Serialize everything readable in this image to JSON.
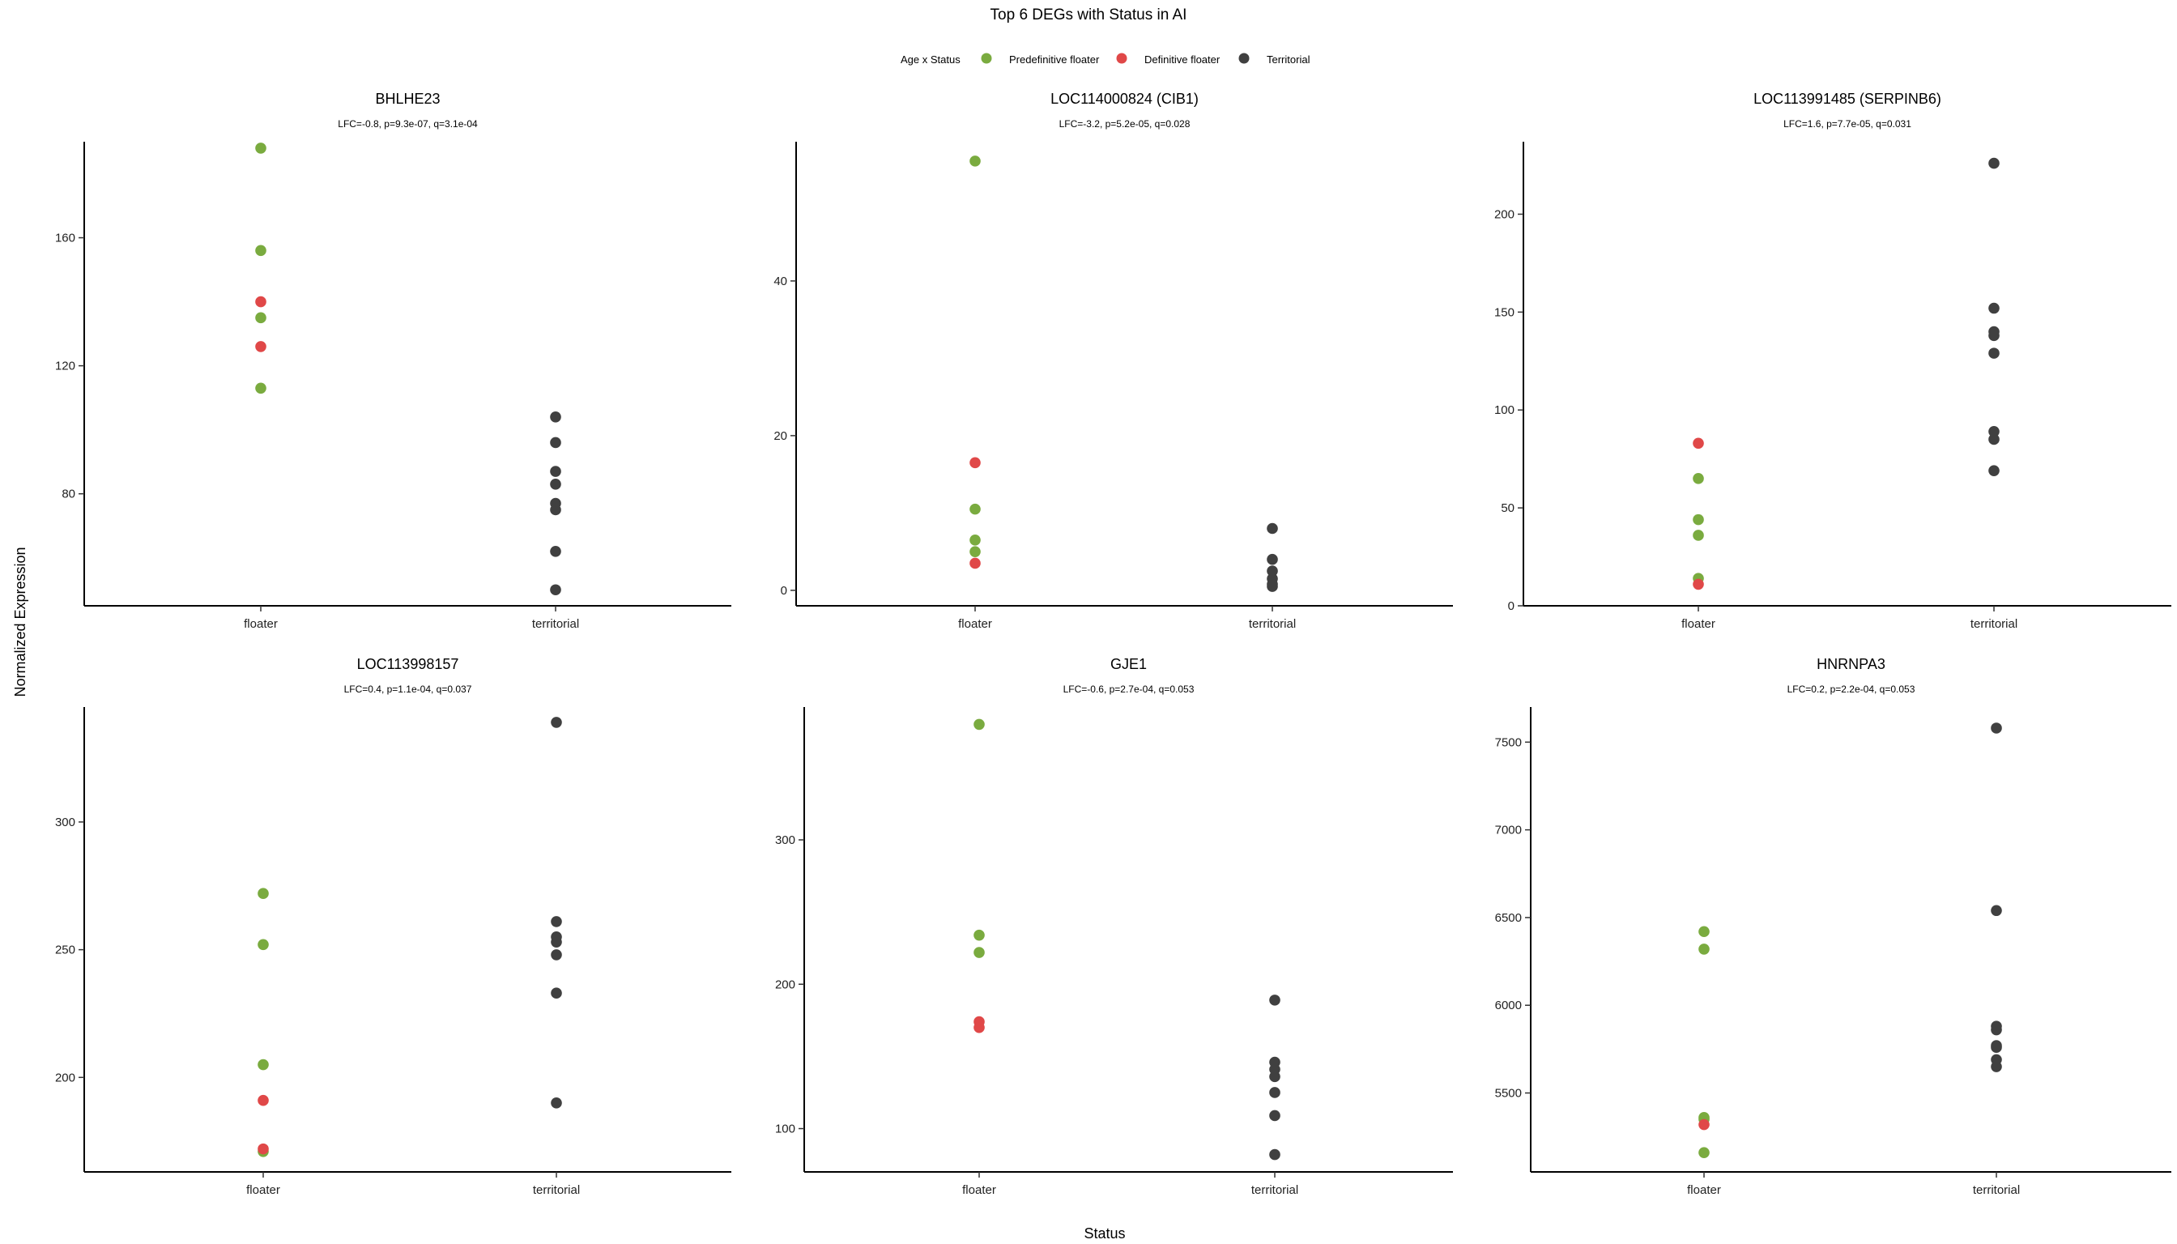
{
  "figure": {
    "title": "Top 6 DEGs with Status in AI",
    "xlabel": "Status",
    "ylabel": "Normalized Expression"
  },
  "legend": {
    "title": "Age x Status",
    "placement": "top-center",
    "items": [
      {
        "label": "Predefinitive floater",
        "color": "#7AAB3F"
      },
      {
        "label": "Definitive floater",
        "color": "#E04848"
      },
      {
        "label": "Territorial",
        "color": "#404040"
      }
    ]
  },
  "chart_data": [
    {
      "type": "scatter",
      "title": "BHLHE23",
      "subtitle": "LFC=-0.8, p=9.3e-07, q=3.1e-04",
      "categories": [
        "floater",
        "territorial"
      ],
      "ylim": [
        45,
        190
      ],
      "yticks": [
        80,
        120,
        160
      ],
      "series": [
        {
          "name": "Predefinitive floater",
          "color": "#7AAB3F",
          "points": [
            {
              "x": "floater",
              "y": 188
            },
            {
              "x": "floater",
              "y": 156
            },
            {
              "x": "floater",
              "y": 135
            },
            {
              "x": "floater",
              "y": 113
            }
          ]
        },
        {
          "name": "Definitive floater",
          "color": "#E04848",
          "points": [
            {
              "x": "floater",
              "y": 140
            },
            {
              "x": "floater",
              "y": 126
            }
          ]
        },
        {
          "name": "Territorial",
          "color": "#404040",
          "points": [
            {
              "x": "territorial",
              "y": 104
            },
            {
              "x": "territorial",
              "y": 96
            },
            {
              "x": "territorial",
              "y": 87
            },
            {
              "x": "territorial",
              "y": 83
            },
            {
              "x": "territorial",
              "y": 77
            },
            {
              "x": "territorial",
              "y": 75
            },
            {
              "x": "territorial",
              "y": 62
            },
            {
              "x": "territorial",
              "y": 50
            }
          ]
        }
      ]
    },
    {
      "type": "scatter",
      "title": "LOC114000824 (CIB1)",
      "subtitle": "LFC=-3.2, p=5.2e-05, q=0.028",
      "categories": [
        "floater",
        "territorial"
      ],
      "ylim": [
        -2,
        58
      ],
      "yticks": [
        0,
        20,
        40
      ],
      "series": [
        {
          "name": "Predefinitive floater",
          "color": "#7AAB3F",
          "points": [
            {
              "x": "floater",
              "y": 55.5
            },
            {
              "x": "floater",
              "y": 10.5
            },
            {
              "x": "floater",
              "y": 6.5
            },
            {
              "x": "floater",
              "y": 5
            }
          ]
        },
        {
          "name": "Definitive floater",
          "color": "#E04848",
          "points": [
            {
              "x": "floater",
              "y": 16.5
            },
            {
              "x": "floater",
              "y": 3.5
            }
          ]
        },
        {
          "name": "Territorial",
          "color": "#404040",
          "points": [
            {
              "x": "territorial",
              "y": 8
            },
            {
              "x": "territorial",
              "y": 4
            },
            {
              "x": "territorial",
              "y": 2.5
            },
            {
              "x": "territorial",
              "y": 1.5
            },
            {
              "x": "territorial",
              "y": 0.8
            },
            {
              "x": "territorial",
              "y": 0.5
            }
          ]
        }
      ]
    },
    {
      "type": "scatter",
      "title": "LOC113991485 (SERPINB6)",
      "subtitle": "LFC=1.6, p=7.7e-05, q=0.031",
      "categories": [
        "floater",
        "territorial"
      ],
      "ylim": [
        0,
        237
      ],
      "yticks": [
        0,
        50,
        100,
        150,
        200
      ],
      "series": [
        {
          "name": "Predefinitive floater",
          "color": "#7AAB3F",
          "points": [
            {
              "x": "floater",
              "y": 65
            },
            {
              "x": "floater",
              "y": 44
            },
            {
              "x": "floater",
              "y": 36
            },
            {
              "x": "floater",
              "y": 14
            }
          ]
        },
        {
          "name": "Definitive floater",
          "color": "#E04848",
          "points": [
            {
              "x": "floater",
              "y": 83
            },
            {
              "x": "floater",
              "y": 11
            }
          ]
        },
        {
          "name": "Territorial",
          "color": "#404040",
          "points": [
            {
              "x": "territorial",
              "y": 226
            },
            {
              "x": "territorial",
              "y": 152
            },
            {
              "x": "territorial",
              "y": 140
            },
            {
              "x": "territorial",
              "y": 138
            },
            {
              "x": "territorial",
              "y": 129
            },
            {
              "x": "territorial",
              "y": 89
            },
            {
              "x": "territorial",
              "y": 85
            },
            {
              "x": "territorial",
              "y": 69
            }
          ]
        }
      ]
    },
    {
      "type": "scatter",
      "title": "LOC113998157",
      "subtitle": "LFC=0.4, p=1.1e-04, q=0.037",
      "categories": [
        "floater",
        "territorial"
      ],
      "ylim": [
        163,
        345
      ],
      "yticks": [
        200,
        250,
        300
      ],
      "series": [
        {
          "name": "Predefinitive floater",
          "color": "#7AAB3F",
          "points": [
            {
              "x": "floater",
              "y": 272
            },
            {
              "x": "floater",
              "y": 252
            },
            {
              "x": "floater",
              "y": 205
            },
            {
              "x": "floater",
              "y": 171
            }
          ]
        },
        {
          "name": "Definitive floater",
          "color": "#E04848",
          "points": [
            {
              "x": "floater",
              "y": 191
            },
            {
              "x": "floater",
              "y": 172
            }
          ]
        },
        {
          "name": "Territorial",
          "color": "#404040",
          "points": [
            {
              "x": "territorial",
              "y": 339
            },
            {
              "x": "territorial",
              "y": 261
            },
            {
              "x": "territorial",
              "y": 255
            },
            {
              "x": "territorial",
              "y": 253
            },
            {
              "x": "territorial",
              "y": 248
            },
            {
              "x": "territorial",
              "y": 233
            },
            {
              "x": "territorial",
              "y": 190
            }
          ]
        }
      ]
    },
    {
      "type": "scatter",
      "title": "GJE1",
      "subtitle": "LFC=-0.6, p=2.7e-04, q=0.053",
      "categories": [
        "floater",
        "territorial"
      ],
      "ylim": [
        70,
        392
      ],
      "yticks": [
        100,
        200,
        300
      ],
      "series": [
        {
          "name": "Predefinitive floater",
          "color": "#7AAB3F",
          "points": [
            {
              "x": "floater",
              "y": 380
            },
            {
              "x": "floater",
              "y": 234
            },
            {
              "x": "floater",
              "y": 222
            }
          ]
        },
        {
          "name": "Definitive floater",
          "color": "#E04848",
          "points": [
            {
              "x": "floater",
              "y": 174
            },
            {
              "x": "floater",
              "y": 170
            }
          ]
        },
        {
          "name": "Territorial",
          "color": "#404040",
          "points": [
            {
              "x": "territorial",
              "y": 189
            },
            {
              "x": "territorial",
              "y": 146
            },
            {
              "x": "territorial",
              "y": 141
            },
            {
              "x": "territorial",
              "y": 136
            },
            {
              "x": "territorial",
              "y": 125
            },
            {
              "x": "territorial",
              "y": 109
            },
            {
              "x": "territorial",
              "y": 82
            }
          ]
        }
      ]
    },
    {
      "type": "scatter",
      "title": "HNRNPA3",
      "subtitle": "LFC=0.2, p=2.2e-04, q=0.053",
      "categories": [
        "floater",
        "territorial"
      ],
      "ylim": [
        5050,
        7700
      ],
      "yticks": [
        5500,
        6000,
        6500,
        7000,
        7500
      ],
      "series": [
        {
          "name": "Predefinitive floater",
          "color": "#7AAB3F",
          "points": [
            {
              "x": "floater",
              "y": 6420
            },
            {
              "x": "floater",
              "y": 6320
            },
            {
              "x": "floater",
              "y": 5360
            },
            {
              "x": "floater",
              "y": 5350
            },
            {
              "x": "floater",
              "y": 5160
            }
          ]
        },
        {
          "name": "Definitive floater",
          "color": "#E04848",
          "points": [
            {
              "x": "floater",
              "y": 5320
            }
          ]
        },
        {
          "name": "Territorial",
          "color": "#404040",
          "points": [
            {
              "x": "territorial",
              "y": 7580
            },
            {
              "x": "territorial",
              "y": 6540
            },
            {
              "x": "territorial",
              "y": 5880
            },
            {
              "x": "territorial",
              "y": 5860
            },
            {
              "x": "territorial",
              "y": 5770
            },
            {
              "x": "territorial",
              "y": 5760
            },
            {
              "x": "territorial",
              "y": 5690
            },
            {
              "x": "territorial",
              "y": 5650
            }
          ]
        }
      ]
    }
  ]
}
